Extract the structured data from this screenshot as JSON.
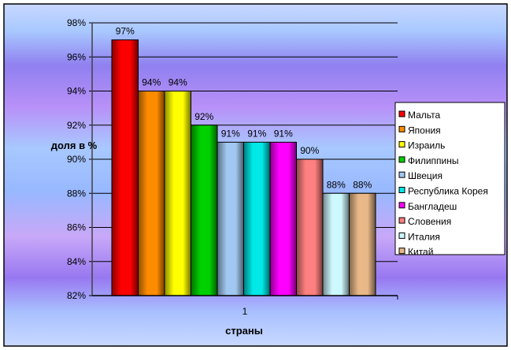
{
  "chart_data": {
    "type": "bar",
    "title": "",
    "xlabel": "страны",
    "ylabel": "доля в %",
    "categories": [
      "1"
    ],
    "ylim": [
      82,
      98
    ],
    "yticks": [
      82,
      84,
      86,
      88,
      90,
      92,
      94,
      96,
      98
    ],
    "ytick_labels": [
      "82%",
      "84%",
      "86%",
      "88%",
      "90%",
      "92%",
      "94%",
      "96%",
      "98%"
    ],
    "grid": true,
    "legend_position": "right",
    "series": [
      {
        "name": "Мальта",
        "values": [
          97
        ],
        "label": "97%",
        "color": "#ff0000"
      },
      {
        "name": "Япония",
        "values": [
          94
        ],
        "label": "94%",
        "color": "#ff8c00"
      },
      {
        "name": "Израиль",
        "values": [
          94
        ],
        "label": "94%",
        "color": "#ffff00"
      },
      {
        "name": "Филиппины",
        "values": [
          92
        ],
        "label": "92%",
        "color": "#00d000"
      },
      {
        "name": "Швеция",
        "values": [
          91
        ],
        "label": "91%",
        "color": "#a0c8f0"
      },
      {
        "name": "Республика Корея",
        "values": [
          91
        ],
        "label": "91%",
        "color": "#00e8e8"
      },
      {
        "name": "Бангладеш",
        "values": [
          91
        ],
        "label": "91%",
        "color": "#ff00ff"
      },
      {
        "name": "Словения",
        "values": [
          90
        ],
        "label": "90%",
        "color": "#ff8080"
      },
      {
        "name": "Италия",
        "values": [
          88
        ],
        "label": "88%",
        "color": "#ccf8ff"
      },
      {
        "name": "Китай",
        "values": [
          88
        ],
        "label": "88%",
        "color": "#e8b888"
      }
    ]
  }
}
